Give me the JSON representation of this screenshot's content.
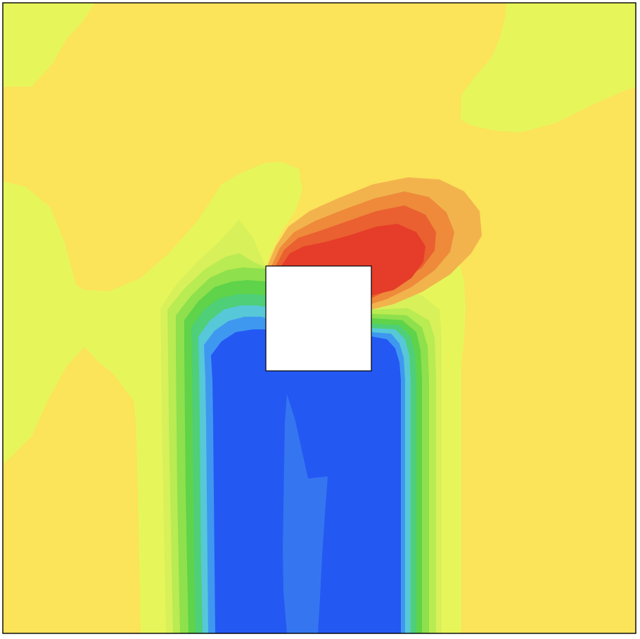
{
  "figure": {
    "kind": "filled-contour-field",
    "description": "",
    "has_axes": false,
    "has_labels": false,
    "has_colorbar": false
  },
  "palette": {
    "background_field": "#fbe35a",
    "near_background": "#e6f65a",
    "yellow_green": "#d8f05a",
    "light_green": "#b9eb52",
    "mid_green": "#8ee04c",
    "green": "#5fd34a",
    "teal_green": "#4ecf78",
    "cyan": "#57c8d8",
    "light_blue": "#3f98f0",
    "blue": "#2458f3",
    "inner_blue": "#3576f0",
    "orange": "#f2b34d",
    "orange_dark": "#ee8a3a",
    "red_orange": "#ea6030",
    "red": "#e53d2a",
    "obstacle": "#ffffff",
    "frame": "#000000"
  },
  "obstacle": {
    "shape": "square",
    "fill_role": "obstacle"
  }
}
